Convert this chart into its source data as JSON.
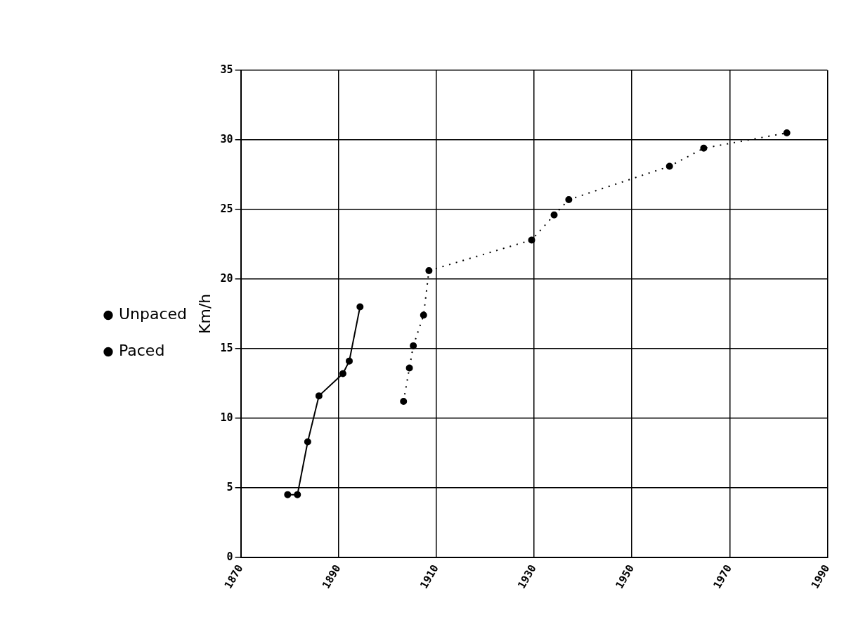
{
  "chart_data": {
    "type": "line",
    "ylabel": "Km/h",
    "series": [
      {
        "name": "Unpaced",
        "color": "#000000",
        "line_style": "dotted",
        "x": [
          1903.3,
          1904.5,
          1905.3,
          1907.4,
          1908.5,
          1929.5,
          1934.1,
          1937.1,
          1957.7,
          1964.7,
          1981.7
        ],
        "values": [
          11.2,
          13.6,
          15.2,
          17.4,
          20.6,
          22.8,
          24.6,
          25.7,
          28.1,
          29.4,
          30.5
        ]
      },
      {
        "name": "Paced",
        "color": "#000000",
        "line_style": "solid",
        "x": [
          1879.6,
          1881.6,
          1883.7,
          1886.0,
          1890.9,
          1892.2,
          1894.4
        ],
        "values": [
          4.5,
          4.5,
          8.3,
          11.6,
          13.2,
          14.1,
          18.0
        ]
      }
    ],
    "xlim": [
      1870,
      1990
    ],
    "xticks": [
      1870,
      1890,
      1910,
      1930,
      1950,
      1970,
      1990
    ],
    "ylim": [
      0,
      35
    ],
    "yticks": [
      0,
      5,
      10,
      15,
      20,
      25,
      30,
      35
    ],
    "grid": true,
    "legend": "left",
    "marker": "circle"
  }
}
